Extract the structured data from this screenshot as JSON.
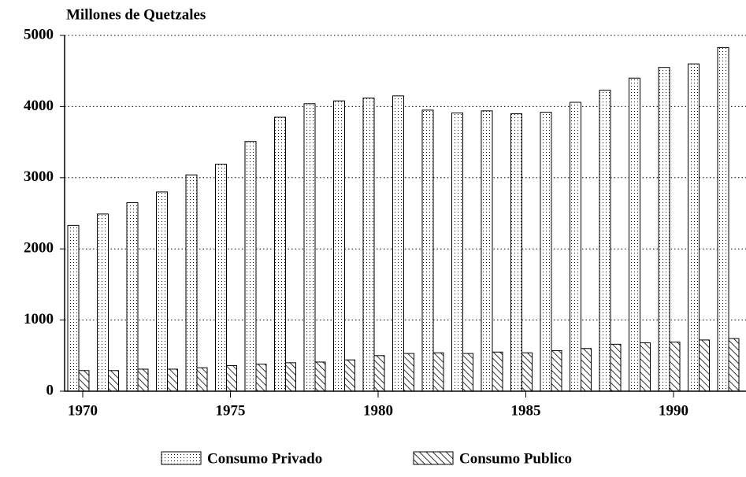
{
  "chart_data": {
    "type": "bar",
    "y_axis_label": "Millones de Quetzales",
    "categories": [
      1970,
      null,
      null,
      null,
      null,
      1975,
      null,
      null,
      null,
      null,
      1980,
      null,
      null,
      null,
      null,
      1985,
      null,
      null,
      null,
      null,
      1990,
      null,
      null
    ],
    "series": [
      {
        "name": "Consumo Privado",
        "color": "#000000",
        "pattern": "dots",
        "values": [
          2330,
          2490,
          2650,
          2800,
          3040,
          3190,
          3510,
          3850,
          4040,
          4080,
          4120,
          4150,
          3950,
          3910,
          3940,
          3900,
          3920,
          4060,
          4230,
          4400,
          4550,
          4600,
          4830
        ]
      },
      {
        "name": "Consumo Publico",
        "color": "#000000",
        "pattern": "hatch",
        "values": [
          290,
          290,
          310,
          310,
          330,
          360,
          380,
          400,
          410,
          440,
          500,
          530,
          540,
          530,
          550,
          540,
          570,
          600,
          660,
          680,
          690,
          720,
          740
        ]
      }
    ],
    "ylim": [
      0,
      5000
    ],
    "yticks": [
      0,
      1000,
      2000,
      3000,
      4000,
      5000
    ],
    "grid": true,
    "legend": "bottom"
  }
}
